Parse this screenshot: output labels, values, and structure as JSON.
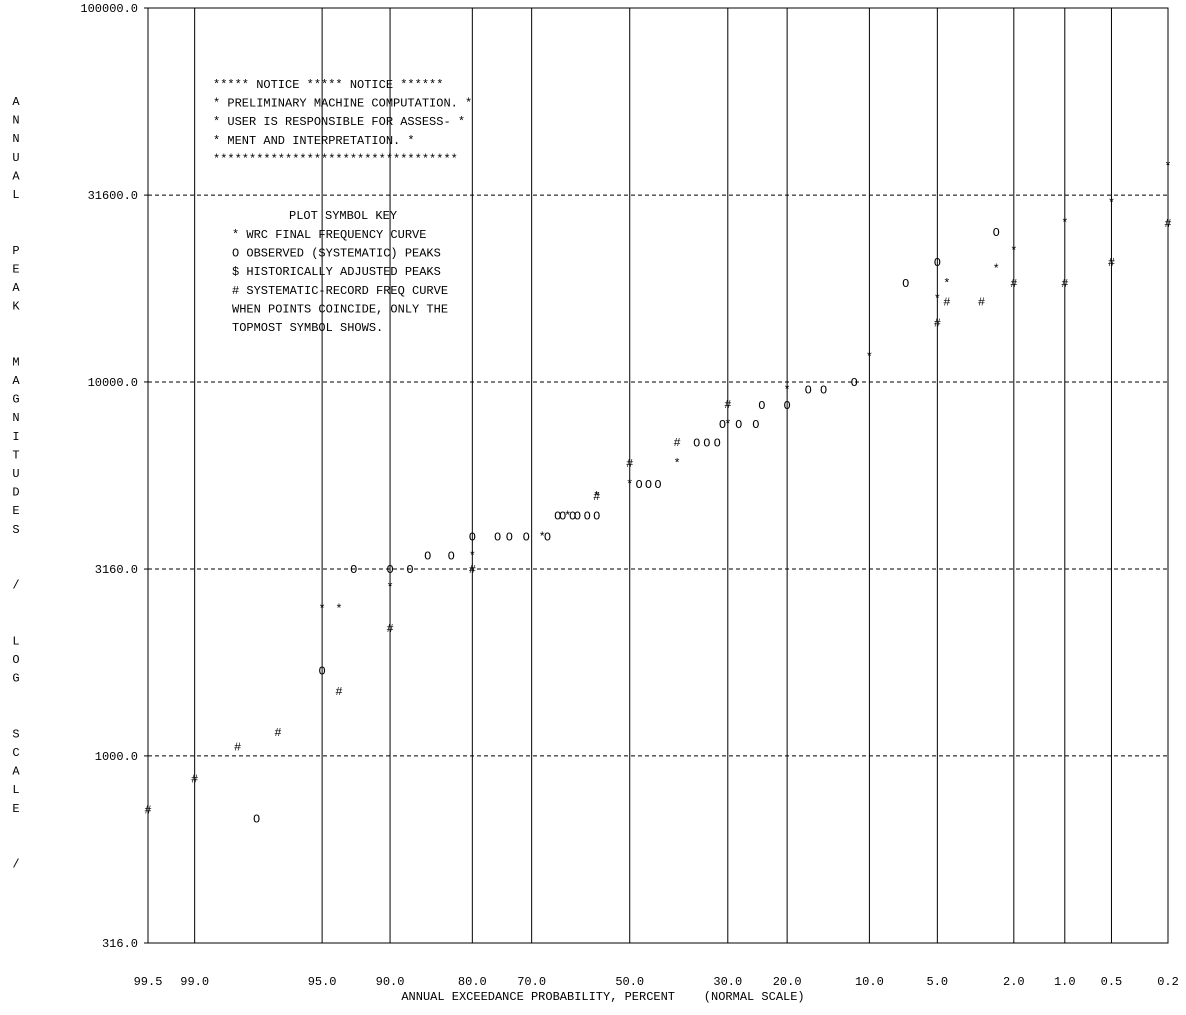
{
  "chart_data": {
    "type": "scatter",
    "title": "",
    "xlabel": "ANNUAL EXCEEDANCE PROBABILITY, PERCENT    (NORMAL SCALE)",
    "ylabel": "ANNUAL PEAK MAGNITUDES / LOG SCALE /",
    "y_scale": "log",
    "ylim": [
      316,
      100000
    ],
    "x_scale": "normal probability (reversed)",
    "xlim": [
      99.5,
      0.2
    ],
    "grid": true,
    "y_ticks": [
      {
        "value": 100000,
        "label": "100000.0"
      },
      {
        "value": 31600,
        "label": "31600.0"
      },
      {
        "value": 10000,
        "label": "10000.0"
      },
      {
        "value": 3160,
        "label": "3160.0"
      },
      {
        "value": 1000,
        "label": "1000.0"
      },
      {
        "value": 316,
        "label": "316.0"
      }
    ],
    "x_ticks": [
      {
        "value": 99.5,
        "label": "99.5"
      },
      {
        "value": 99.0,
        "label": "99.0"
      },
      {
        "value": 95.0,
        "label": "95.0"
      },
      {
        "value": 90.0,
        "label": "90.0"
      },
      {
        "value": 80.0,
        "label": "80.0"
      },
      {
        "value": 70.0,
        "label": "70.0"
      },
      {
        "value": 50.0,
        "label": "50.0"
      },
      {
        "value": 30.0,
        "label": "30.0"
      },
      {
        "value": 20.0,
        "label": "20.0"
      },
      {
        "value": 10.0,
        "label": "10.0"
      },
      {
        "value": 5.0,
        "label": "5.0"
      },
      {
        "value": 2.0,
        "label": "2.0"
      },
      {
        "value": 1.0,
        "label": "1.0"
      },
      {
        "value": 0.5,
        "label": "0.5"
      },
      {
        "value": 0.2,
        "label": "0.2"
      }
    ],
    "series": [
      {
        "name": "WRC FINAL FREQUENCY CURVE",
        "symbol": "*",
        "points": [
          [
            0.2,
            37800
          ],
          [
            0.5,
            30200
          ],
          [
            1.0,
            26700
          ],
          [
            2.0,
            22500
          ],
          [
            2.5,
            20100
          ],
          [
            4.5,
            18400
          ],
          [
            5.0,
            16700
          ],
          [
            10.0,
            11700
          ],
          [
            20.0,
            9540
          ],
          [
            30.0,
            7730
          ],
          [
            40.0,
            6080
          ],
          [
            50.0,
            5340
          ],
          [
            57.0,
            4950
          ],
          [
            63.0,
            4400
          ],
          [
            68.0,
            3860
          ],
          [
            80.0,
            3440
          ],
          [
            90.0,
            2830
          ],
          [
            94.0,
            2480
          ],
          [
            95.0,
            2480
          ]
        ]
      },
      {
        "name": "OBSERVED (SYSTEMATIC) PEAKS",
        "symbol": "O",
        "points": [
          [
            2.5,
            25200
          ],
          [
            5.0,
            20900
          ],
          [
            7.0,
            18400
          ],
          [
            11.5,
            10000
          ],
          [
            15.0,
            9540
          ],
          [
            17.0,
            9540
          ],
          [
            20.0,
            8680
          ],
          [
            24.0,
            8680
          ],
          [
            28.0,
            7730
          ],
          [
            31.0,
            7730
          ],
          [
            25.0,
            7730
          ],
          [
            32.0,
            6880
          ],
          [
            34.0,
            6880
          ],
          [
            36.0,
            6880
          ],
          [
            44.0,
            5340
          ],
          [
            46.0,
            5340
          ],
          [
            48.0,
            5340
          ],
          [
            57.0,
            4400
          ],
          [
            59.0,
            4400
          ],
          [
            61.0,
            4400
          ],
          [
            62.0,
            4400
          ],
          [
            64.0,
            4400
          ],
          [
            65.0,
            4400
          ],
          [
            67.0,
            3860
          ],
          [
            71.0,
            3860
          ],
          [
            74.0,
            3860
          ],
          [
            76.0,
            3860
          ],
          [
            80.0,
            3860
          ],
          [
            83.0,
            3440
          ],
          [
            86.0,
            3440
          ],
          [
            88.0,
            3160
          ],
          [
            90.0,
            3160
          ],
          [
            93.0,
            3160
          ],
          [
            95.0,
            1690
          ],
          [
            97.7,
            680
          ]
        ]
      },
      {
        "name": "SYSTEMATIC-RECORD FREQ CURVE",
        "symbol": "#",
        "points": [
          [
            0.2,
            26600
          ],
          [
            0.5,
            20900
          ],
          [
            1.0,
            18400
          ],
          [
            2.0,
            18400
          ],
          [
            3.0,
            16400
          ],
          [
            4.5,
            16400
          ],
          [
            5.0,
            14400
          ],
          [
            30.0,
            8720
          ],
          [
            40.0,
            6900
          ],
          [
            50.0,
            6080
          ],
          [
            57.0,
            4950
          ],
          [
            80.0,
            3160
          ],
          [
            90.0,
            2200
          ],
          [
            94.0,
            1490
          ],
          [
            97.0,
            1160
          ],
          [
            98.2,
            1060
          ],
          [
            99.0,
            870
          ],
          [
            99.5,
            720
          ]
        ]
      }
    ],
    "notice": {
      "lines": [
        "***** NOTICE ***** NOTICE ******",
        "* PRELIMINARY MACHINE COMPUTATION. *",
        "*  USER IS RESPONSIBLE FOR ASSESS- *",
        "*      MENT AND INTERPRETATION.    *",
        "**********************************"
      ]
    },
    "legend": {
      "title": "PLOT SYMBOL KEY",
      "entries": [
        "*  WRC FINAL FREQUENCY CURVE",
        "O  OBSERVED (SYSTEMATIC) PEAKS",
        "$  HISTORICALLY ADJUSTED PEAKS",
        "#  SYSTEMATIC-RECORD FREQ CURVE",
        "WHEN POINTS COINCIDE, ONLY THE",
        "TOPMOST SYMBOL SHOWS."
      ],
      "placement": "upper-left"
    }
  }
}
